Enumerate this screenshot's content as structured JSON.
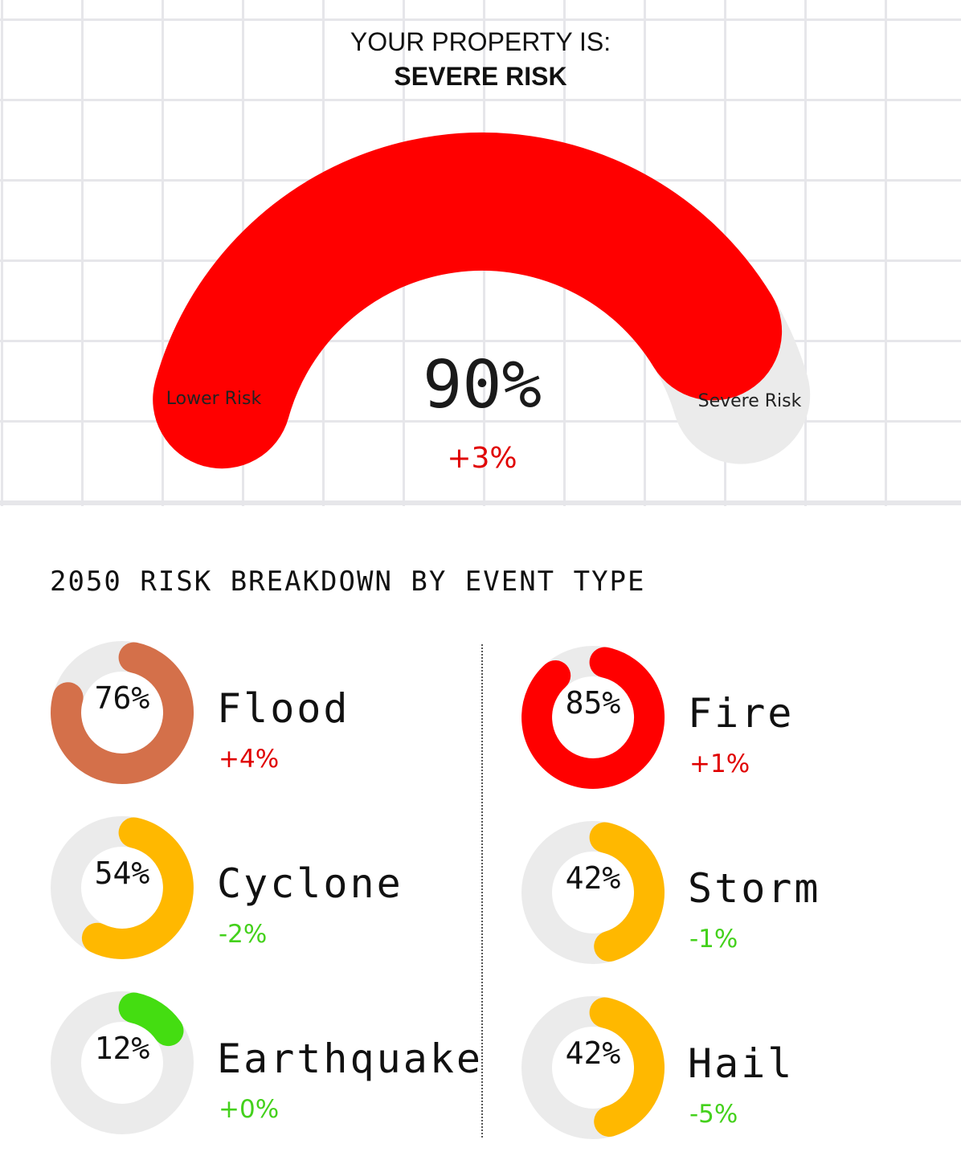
{
  "header": {
    "line1": "YOUR PROPERTY IS:",
    "line2": "SEVERE RISK"
  },
  "gauge": {
    "value_percent": 90,
    "value_label": "90%",
    "change_label": "+3%",
    "lower_label": "Lower Risk",
    "severe_label": "Severe Risk",
    "fill_color": "#ff0000",
    "track_color": "#ebebeb",
    "change_color": "#e00000"
  },
  "breakdown": {
    "title": "2050 RISK BREAKDOWN BY EVENT TYPE",
    "events": [
      {
        "name": "Flood",
        "percent": 76,
        "percent_label": "76%",
        "change": "+4%",
        "color": "#d4704a",
        "change_color": "#e00000"
      },
      {
        "name": "Fire",
        "percent": 85,
        "percent_label": "85%",
        "change": "+1%",
        "color": "#ff0000",
        "change_color": "#e00000"
      },
      {
        "name": "Cyclone",
        "percent": 54,
        "percent_label": "54%",
        "change": "-2%",
        "color": "#ffb800",
        "change_color": "#44d11c"
      },
      {
        "name": "Storm",
        "percent": 42,
        "percent_label": "42%",
        "change": "-1%",
        "color": "#ffb800",
        "change_color": "#44d11c"
      },
      {
        "name": "Earthquake",
        "percent": 12,
        "percent_label": "12%",
        "change": "+0%",
        "color": "#44dd11",
        "change_color": "#44d11c"
      },
      {
        "name": "Hail",
        "percent": 42,
        "percent_label": "42%",
        "change": "-5%",
        "color": "#ffb800",
        "change_color": "#44d11c"
      }
    ]
  }
}
